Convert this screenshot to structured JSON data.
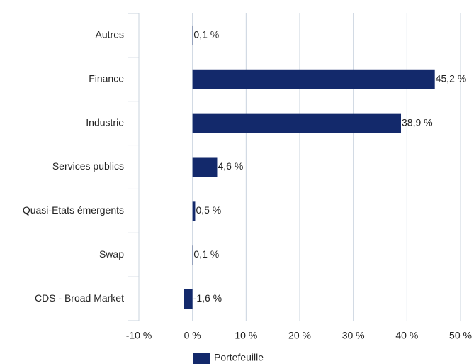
{
  "chart_data": {
    "type": "hbar",
    "categories": [
      "Autres",
      "Finance",
      "Industrie",
      "Services publics",
      "Quasi-Etats émergents",
      "Swap",
      "CDS - Broad Market"
    ],
    "series": [
      {
        "name": "Portefeuille",
        "color": "#13296b",
        "values": [
          0.1,
          45.2,
          38.9,
          4.6,
          0.5,
          0.1,
          -1.6
        ],
        "value_labels": [
          "0,1 %",
          "45,2 %",
          "38,9 %",
          "4,6 %",
          "0,5 %",
          "0,1 %",
          "-1,6 %"
        ]
      }
    ],
    "xlim": [
      -10,
      50
    ],
    "xticks": [
      {
        "value": -10,
        "label": "-10 %"
      },
      {
        "value": 0,
        "label": "0 %"
      },
      {
        "value": 10,
        "label": "10 %"
      },
      {
        "value": 20,
        "label": "20 %"
      },
      {
        "value": 30,
        "label": "30 %"
      },
      {
        "value": 40,
        "label": "40 %"
      },
      {
        "value": 50,
        "label": "50 %"
      }
    ],
    "grid": true
  }
}
